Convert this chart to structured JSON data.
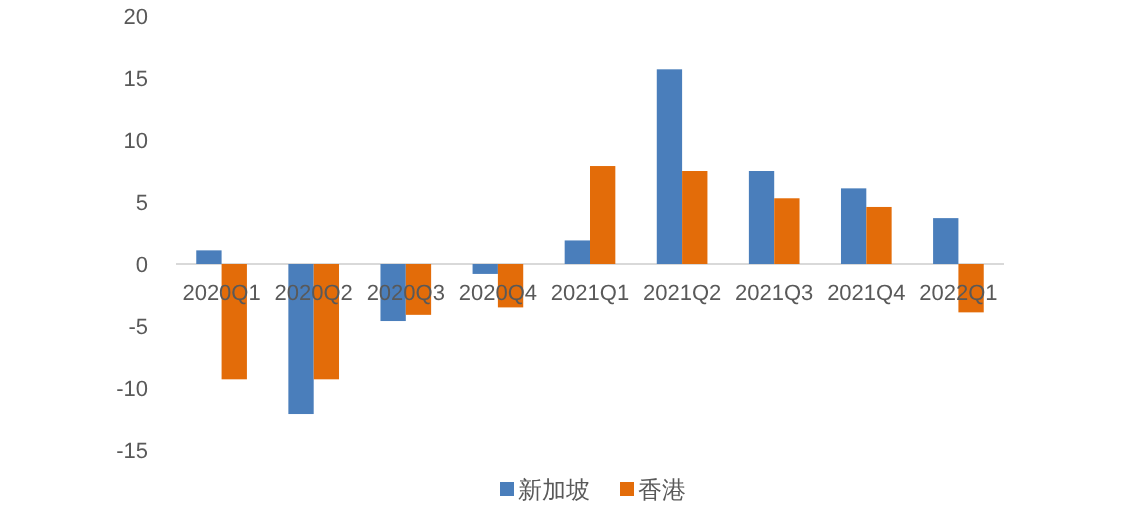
{
  "chart_data": {
    "type": "bar",
    "categories": [
      "2020Q1",
      "2020Q2",
      "2020Q3",
      "2020Q4",
      "2021Q1",
      "2021Q2",
      "2021Q3",
      "2021Q4",
      "2022Q1"
    ],
    "series": [
      {
        "name": "新加坡",
        "color": "#4a7ebb",
        "values": [
          1.1,
          -12.1,
          -4.6,
          -0.8,
          1.9,
          15.7,
          7.5,
          6.1,
          3.7
        ]
      },
      {
        "name": "香港",
        "color": "#e36c09",
        "values": [
          -9.3,
          -9.3,
          -4.1,
          -3.5,
          7.9,
          7.5,
          5.3,
          4.6,
          -3.9
        ]
      }
    ],
    "ylim": [
      -15,
      20
    ],
    "yticks": [
      -15,
      -10,
      -5,
      0,
      5,
      10,
      15,
      20
    ],
    "legend": "bottom"
  }
}
